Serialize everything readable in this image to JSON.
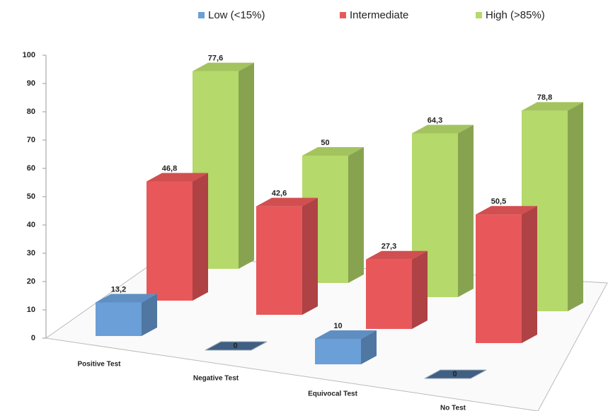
{
  "chart_data": {
    "type": "bar3d",
    "categories": [
      "Positive Test",
      "Negative Test",
      "Equivocal Test",
      "No Test"
    ],
    "series": [
      {
        "name": "Low (<15%)",
        "color": "#6a9fd8",
        "values": [
          13.2,
          0,
          10,
          0
        ],
        "value_labels": [
          "13,2",
          "0",
          "10",
          "0"
        ]
      },
      {
        "name": "Intermediate",
        "color": "#e8585a",
        "values": [
          46.8,
          42.6,
          27.3,
          50.5
        ],
        "value_labels": [
          "46,8",
          "42,6",
          "27,3",
          "50,5"
        ]
      },
      {
        "name": "High (>85%)",
        "color": "#b5d96a",
        "values": [
          77.6,
          50,
          64.3,
          78.8
        ],
        "value_labels": [
          "77,6",
          "50",
          "64,3",
          "78,8"
        ]
      }
    ],
    "ylim": [
      0,
      100
    ],
    "yticks": [
      0,
      10,
      20,
      30,
      40,
      50,
      60,
      70,
      80,
      90,
      100
    ],
    "grid": false
  }
}
